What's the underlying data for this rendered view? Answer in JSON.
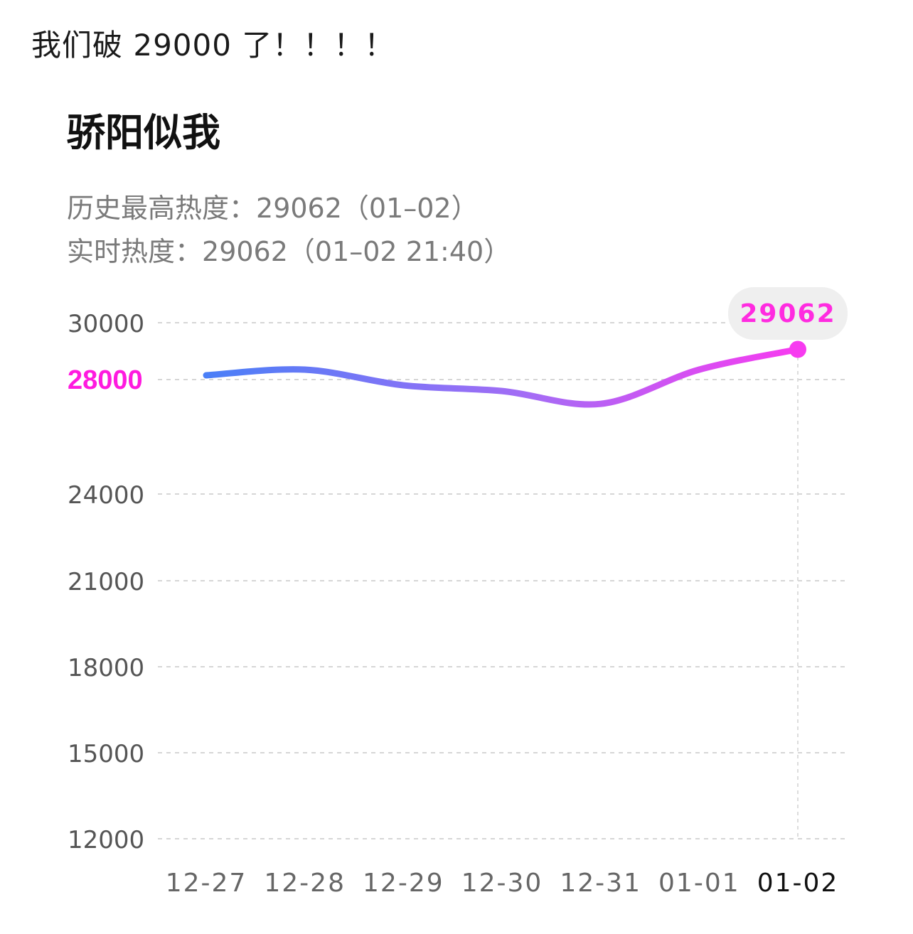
{
  "post": {
    "text": "我们破 29000 了！！！！"
  },
  "card": {
    "title": "骄阳似我",
    "peak_label": "历史最高热度：",
    "peak_value": "29062",
    "peak_date": "（01–02）",
    "realtime_label": "实时热度：",
    "realtime_value": "29062",
    "realtime_time": "（01–02 21:40）"
  },
  "chart_data": {
    "type": "line",
    "x": [
      "12-27",
      "12-28",
      "12-29",
      "12-30",
      "12-31",
      "01-01",
      "01-02"
    ],
    "series": [
      {
        "values": [
          28150,
          28350,
          27800,
          27600,
          27150,
          28350,
          29062
        ]
      }
    ],
    "y_ticks": [
      12000,
      15000,
      18000,
      21000,
      24000,
      28000,
      30000
    ],
    "highlighted_tick": 28000,
    "active_x": "01-02",
    "tooltip": "29062",
    "grid": true,
    "colors": {
      "line_start": "#4a7ff7",
      "line_end": "#f73bf0",
      "highlight": "#ff1adf"
    }
  }
}
